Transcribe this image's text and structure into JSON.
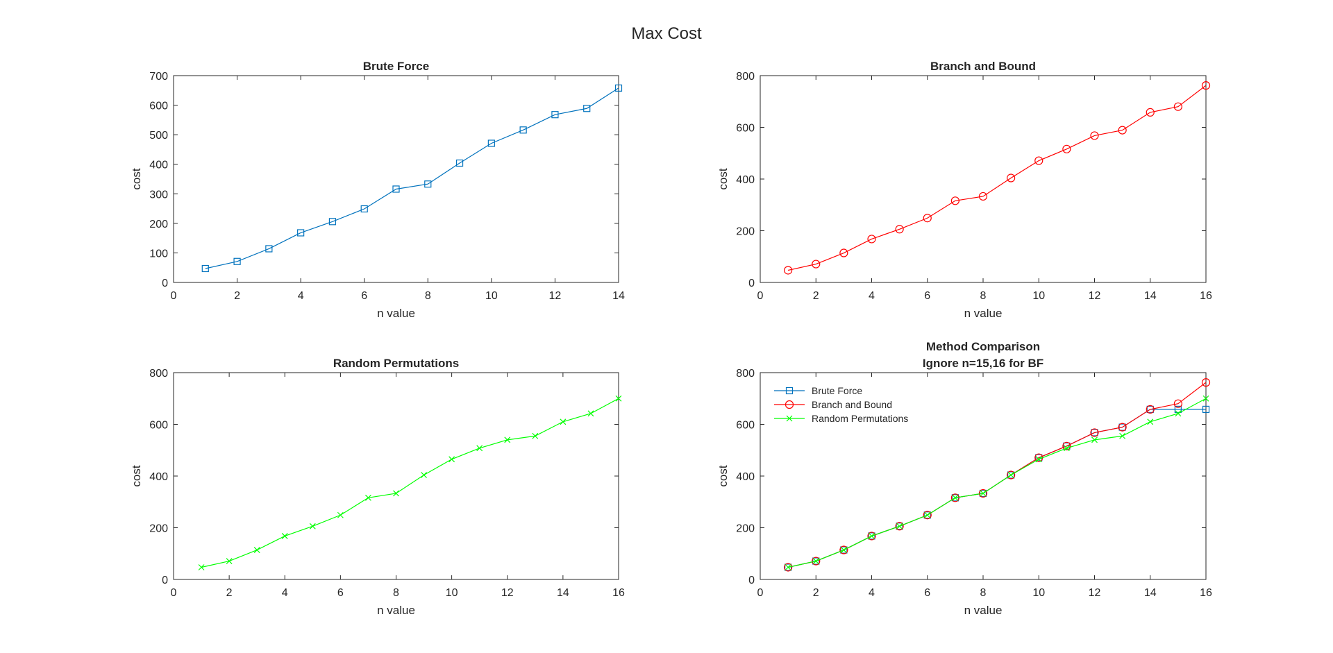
{
  "figure_title": "Max Cost",
  "chart_data": [
    {
      "type": "line",
      "title": [
        "Brute Force"
      ],
      "xlabel": "n value",
      "ylabel": "cost",
      "xlim": [
        0,
        14
      ],
      "ylim": [
        0,
        700
      ],
      "xticks": [
        0,
        2,
        4,
        6,
        8,
        10,
        12,
        14
      ],
      "yticks": [
        0,
        100,
        200,
        300,
        400,
        500,
        600,
        700
      ],
      "grid": false,
      "legend": null,
      "series": [
        {
          "color": "#0072BD",
          "marker": "square",
          "x": [
            1,
            2,
            3,
            4,
            5,
            6,
            7,
            8,
            9,
            10,
            11,
            12,
            13,
            14
          ],
          "y": [
            47,
            71,
            114,
            168,
            206,
            249,
            316,
            333,
            404,
            471,
            516,
            568,
            589,
            658
          ]
        }
      ]
    },
    {
      "type": "line",
      "title": [
        "Branch and Bound"
      ],
      "xlabel": "n value",
      "ylabel": "cost",
      "xlim": [
        0,
        16
      ],
      "ylim": [
        0,
        800
      ],
      "xticks": [
        0,
        2,
        4,
        6,
        8,
        10,
        12,
        14,
        16
      ],
      "yticks": [
        0,
        200,
        400,
        600,
        800
      ],
      "grid": false,
      "legend": null,
      "series": [
        {
          "color": "#FF0000",
          "marker": "circle",
          "x": [
            1,
            2,
            3,
            4,
            5,
            6,
            7,
            8,
            9,
            10,
            11,
            12,
            13,
            14,
            15,
            16
          ],
          "y": [
            47,
            71,
            114,
            168,
            206,
            249,
            316,
            333,
            404,
            471,
            516,
            568,
            589,
            658,
            680,
            762
          ]
        }
      ]
    },
    {
      "type": "line",
      "title": [
        "Random Permutations"
      ],
      "xlabel": "n value",
      "ylabel": "cost",
      "xlim": [
        0,
        16
      ],
      "ylim": [
        0,
        800
      ],
      "xticks": [
        0,
        2,
        4,
        6,
        8,
        10,
        12,
        14,
        16
      ],
      "yticks": [
        0,
        200,
        400,
        600,
        800
      ],
      "grid": false,
      "legend": null,
      "series": [
        {
          "color": "#00FF00",
          "marker": "x",
          "x": [
            1,
            2,
            3,
            4,
            5,
            6,
            7,
            8,
            9,
            10,
            11,
            12,
            13,
            14,
            15,
            16
          ],
          "y": [
            47,
            71,
            114,
            168,
            206,
            249,
            316,
            333,
            404,
            465,
            508,
            540,
            555,
            610,
            642,
            700
          ]
        }
      ]
    },
    {
      "type": "line",
      "title": [
        "Method Comparison",
        "Ignore n=15,16 for BF"
      ],
      "xlabel": "n value",
      "ylabel": "cost",
      "xlim": [
        0,
        16
      ],
      "ylim": [
        0,
        800
      ],
      "xticks": [
        0,
        2,
        4,
        6,
        8,
        10,
        12,
        14,
        16
      ],
      "yticks": [
        0,
        200,
        400,
        600,
        800
      ],
      "grid": false,
      "legend": "top-left",
      "series": [
        {
          "name": "Brute Force",
          "color": "#0072BD",
          "marker": "square",
          "x": [
            1,
            2,
            3,
            4,
            5,
            6,
            7,
            8,
            9,
            10,
            11,
            12,
            13,
            14,
            15,
            16
          ],
          "y": [
            47,
            71,
            114,
            168,
            206,
            249,
            316,
            333,
            404,
            471,
            516,
            568,
            589,
            658,
            658,
            658
          ]
        },
        {
          "name": "Branch and Bound",
          "color": "#FF0000",
          "marker": "circle",
          "x": [
            1,
            2,
            3,
            4,
            5,
            6,
            7,
            8,
            9,
            10,
            11,
            12,
            13,
            14,
            15,
            16
          ],
          "y": [
            47,
            71,
            114,
            168,
            206,
            249,
            316,
            333,
            404,
            471,
            516,
            568,
            589,
            658,
            680,
            762
          ]
        },
        {
          "name": "Random Permutations",
          "color": "#00FF00",
          "marker": "x",
          "x": [
            1,
            2,
            3,
            4,
            5,
            6,
            7,
            8,
            9,
            10,
            11,
            12,
            13,
            14,
            15,
            16
          ],
          "y": [
            47,
            71,
            114,
            168,
            206,
            249,
            316,
            333,
            404,
            465,
            508,
            540,
            555,
            610,
            642,
            700
          ]
        }
      ]
    }
  ]
}
